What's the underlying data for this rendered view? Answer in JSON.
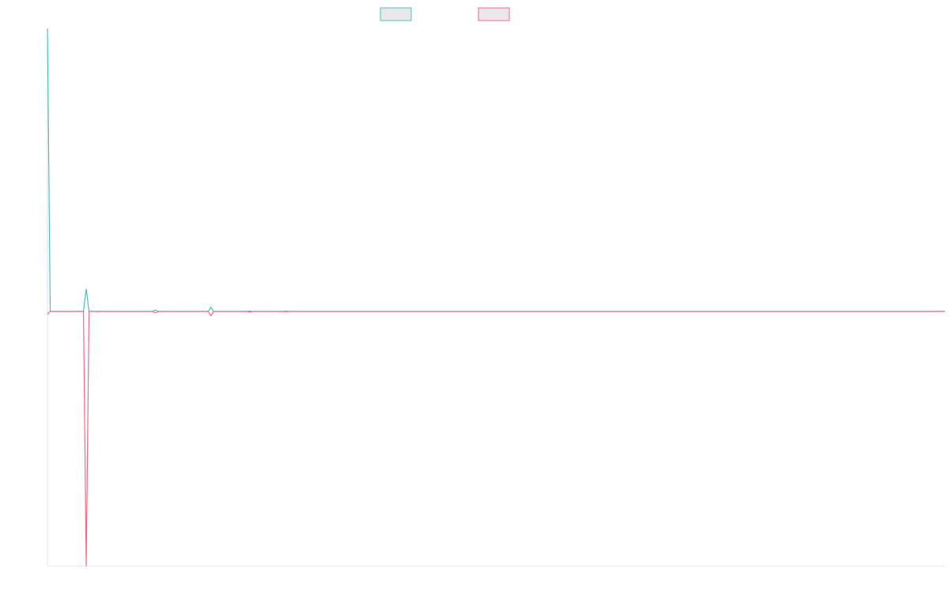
{
  "chart_data": {
    "type": "line",
    "x": [
      0,
      1,
      13,
      14,
      15,
      38,
      39,
      40,
      58,
      59,
      60,
      72,
      73,
      74,
      85,
      86,
      87,
      324
    ],
    "xlim": [
      0,
      324
    ],
    "ylim": [
      -0.9,
      1.0
    ],
    "series": [
      {
        "color": "#4bc0c0",
        "values": [
          1.0,
          0,
          0,
          0.08,
          0,
          0,
          0.005,
          0,
          0,
          0.015,
          0,
          0,
          0.002,
          0,
          0,
          0.001,
          0,
          0
        ]
      },
      {
        "color": "#ff6384",
        "values": [
          -0.01,
          0,
          0,
          -0.9,
          0,
          0,
          -0.005,
          0,
          0,
          -0.015,
          0,
          0,
          -0.002,
          0,
          0,
          -0.001,
          0,
          0
        ]
      }
    ]
  }
}
